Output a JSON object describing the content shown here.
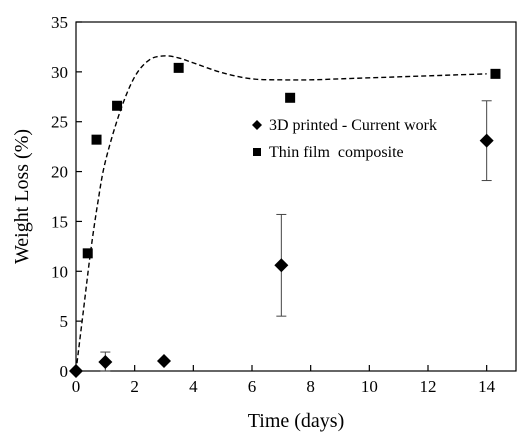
{
  "chart_data": {
    "type": "scatter",
    "xlabel": "Time (days)",
    "ylabel": "Weight Loss (%)",
    "xlim": [
      0,
      15
    ],
    "ylim": [
      0,
      35
    ],
    "xticks": [
      0,
      2,
      4,
      6,
      8,
      10,
      12,
      14
    ],
    "yticks": [
      0,
      5,
      10,
      15,
      20,
      25,
      30,
      35
    ],
    "grid": false,
    "legend_position": "right-center",
    "series": [
      {
        "name": "3D printed - Current work",
        "marker": "diamond",
        "color": "#000000",
        "points": [
          {
            "x": 0,
            "y": 0,
            "err": 0
          },
          {
            "x": 1,
            "y": 0.9,
            "err": 1.0
          },
          {
            "x": 3,
            "y": 1.0,
            "err": 0
          },
          {
            "x": 7,
            "y": 10.6,
            "err": 5.1
          },
          {
            "x": 14,
            "y": 23.1,
            "err": 4.0
          }
        ]
      },
      {
        "name": "Thin film  composite",
        "marker": "square",
        "color": "#000000",
        "points": [
          {
            "x": 0.4,
            "y": 11.8
          },
          {
            "x": 0.7,
            "y": 23.2
          },
          {
            "x": 1.4,
            "y": 26.6
          },
          {
            "x": 3.5,
            "y": 30.4
          },
          {
            "x": 7.3,
            "y": 27.4
          },
          {
            "x": 14.3,
            "y": 29.8
          }
        ]
      }
    ],
    "trendline": {
      "style": "dashed",
      "color": "#000000",
      "points": [
        [
          0,
          0
        ],
        [
          0.25,
          6
        ],
        [
          0.5,
          12
        ],
        [
          0.75,
          17
        ],
        [
          1,
          21
        ],
        [
          1.5,
          26
        ],
        [
          2,
          29.5
        ],
        [
          2.5,
          31.2
        ],
        [
          3,
          31.6
        ],
        [
          3.5,
          31.4
        ],
        [
          4,
          30.9
        ],
        [
          5,
          29.9
        ],
        [
          6,
          29.3
        ],
        [
          7,
          29.2
        ],
        [
          8,
          29.2
        ],
        [
          9,
          29.3
        ],
        [
          10,
          29.4
        ],
        [
          11,
          29.5
        ],
        [
          12,
          29.6
        ],
        [
          13,
          29.7
        ],
        [
          14,
          29.8
        ]
      ]
    }
  }
}
